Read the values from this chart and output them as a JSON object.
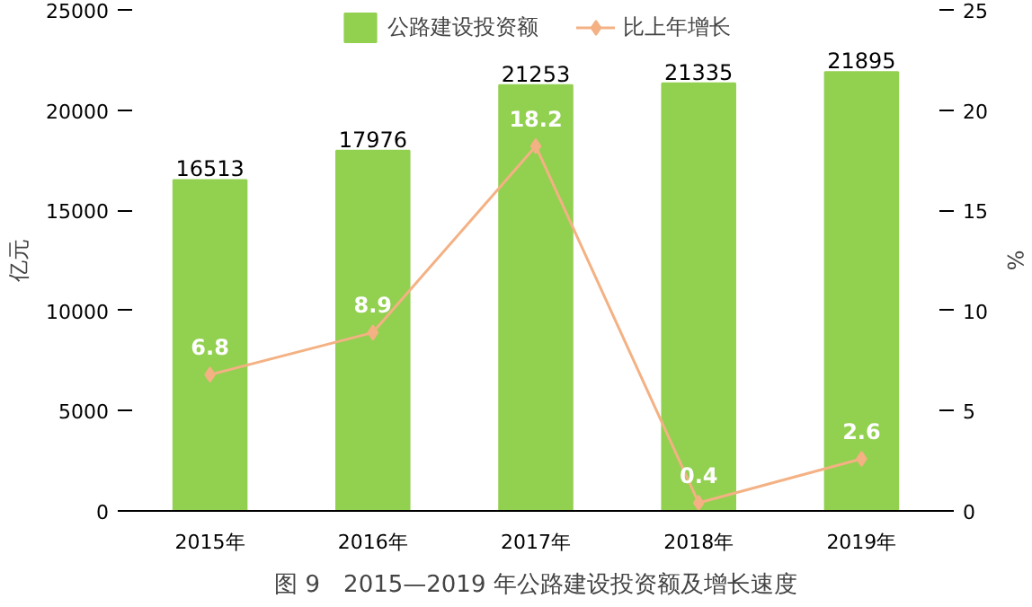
{
  "chart_data": {
    "type": "bar",
    "title": "图 9　2015—2019 年公路建设投资额及增长速度",
    "categories": [
      "2015年",
      "2016年",
      "2017年",
      "2018年",
      "2019年"
    ],
    "series": [
      {
        "name": "公路建设投资额",
        "color": "#92d050",
        "values": [
          16513,
          17976,
          21253,
          21335,
          21895
        ]
      },
      {
        "name": "比上年增长",
        "type": "line",
        "axis": "y2",
        "color": "#f4b183",
        "marker": "diamond",
        "values": [
          6.8,
          8.9,
          18.2,
          0.4,
          2.6
        ]
      }
    ],
    "ylabel": "亿元",
    "y2label": "%",
    "ylim": [
      0,
      25000
    ],
    "yticks": [
      0,
      5000,
      10000,
      15000,
      20000,
      25000
    ],
    "y2lim": [
      0,
      25
    ],
    "y2ticks": [
      0,
      5,
      10,
      15,
      20,
      25
    ],
    "data_labels": true,
    "legend": "top",
    "grid": false
  }
}
